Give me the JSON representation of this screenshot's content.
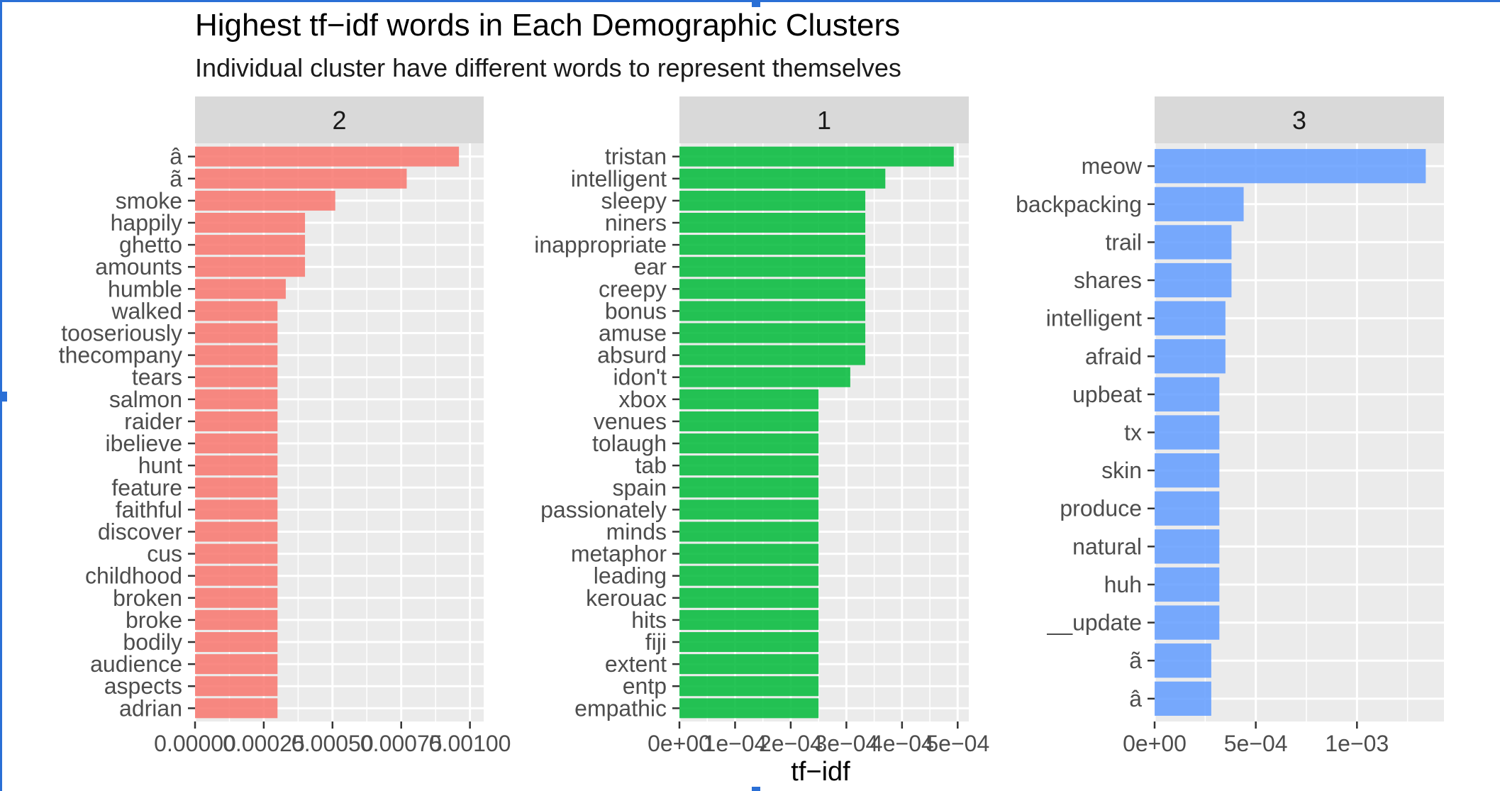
{
  "title": "Highest tf−idf words in Each Demographic Clusters",
  "subtitle": "Individual cluster have different words to represent themselves",
  "chart_data": {
    "type": "bar",
    "orientation": "horizontal",
    "x_axis_label": "tf−idf",
    "grid": true,
    "colors": {
      "panel_background": "#ebebeb",
      "strip_background": "#d9d9d9",
      "gridline": "#ffffff"
    },
    "panels": [
      {
        "strip": "2",
        "color": "#f8766d",
        "xlim": [
          0,
          0.00105
        ],
        "tick_values": [
          0,
          0.00025,
          0.0005,
          0.00075,
          0.001
        ],
        "tick_labels": [
          "0.00000",
          "0.00025",
          "0.00050",
          "0.00075",
          "0.00100"
        ],
        "categories": [
          "â",
          "ã",
          "smoke",
          "happily",
          "ghetto",
          "amounts",
          "humble",
          "walked",
          "tooseriously",
          "thecompany",
          "tears",
          "salmon",
          "raider",
          "ibelieve",
          "hunt",
          "feature",
          "faithful",
          "discover",
          "cus",
          "childhood",
          "broken",
          "broke",
          "bodily",
          "audience",
          "aspects",
          "adrian"
        ],
        "values": [
          0.00096,
          0.00077,
          0.00051,
          0.0004,
          0.0004,
          0.0004,
          0.00033,
          0.0003,
          0.0003,
          0.0003,
          0.0003,
          0.0003,
          0.0003,
          0.0003,
          0.0003,
          0.0003,
          0.0003,
          0.0003,
          0.0003,
          0.0003,
          0.0003,
          0.0003,
          0.0003,
          0.0003,
          0.0003,
          0.0003
        ]
      },
      {
        "strip": "1",
        "color": "#00ba38",
        "xlim": [
          0,
          0.00052
        ],
        "tick_values": [
          0,
          0.0001,
          0.0002,
          0.0003,
          0.0004,
          0.0005
        ],
        "tick_labels": [
          "0e+00",
          "1e−04",
          "2e−04",
          "3e−04",
          "4e−04",
          "5e−04"
        ],
        "categories": [
          "tristan",
          "intelligent",
          "sleepy",
          "niners",
          "inappropriate",
          "ear",
          "creepy",
          "bonus",
          "amuse",
          "absurd",
          "idon't",
          "xbox",
          "venues",
          "tolaugh",
          "tab",
          "spain",
          "passionately",
          "minds",
          "metaphor",
          "leading",
          "kerouac",
          "hits",
          "fiji",
          "extent",
          "entp",
          "empathic"
        ],
        "values": [
          0.000493,
          0.00037,
          0.000334,
          0.000334,
          0.000334,
          0.000334,
          0.000334,
          0.000334,
          0.000334,
          0.000334,
          0.000307,
          0.00025,
          0.00025,
          0.00025,
          0.00025,
          0.00025,
          0.00025,
          0.00025,
          0.00025,
          0.00025,
          0.00025,
          0.00025,
          0.00025,
          0.00025,
          0.00025,
          0.00025
        ]
      },
      {
        "strip": "3",
        "color": "#619cff",
        "xlim": [
          0,
          0.00143
        ],
        "tick_values": [
          0,
          0.0005,
          0.001
        ],
        "tick_labels": [
          "0e+00",
          "5e−04",
          "1e−03"
        ],
        "categories": [
          "meow",
          "backpacking",
          "trail",
          "shares",
          "intelligent",
          "afraid",
          "upbeat",
          "tx",
          "skin",
          "produce",
          "natural",
          "huh",
          "__update",
          "ã",
          "â"
        ],
        "values": [
          0.00134,
          0.00044,
          0.00038,
          0.00038,
          0.00035,
          0.00035,
          0.00032,
          0.00032,
          0.00032,
          0.00032,
          0.00032,
          0.00032,
          0.00032,
          0.00028,
          0.00028
        ]
      }
    ]
  }
}
